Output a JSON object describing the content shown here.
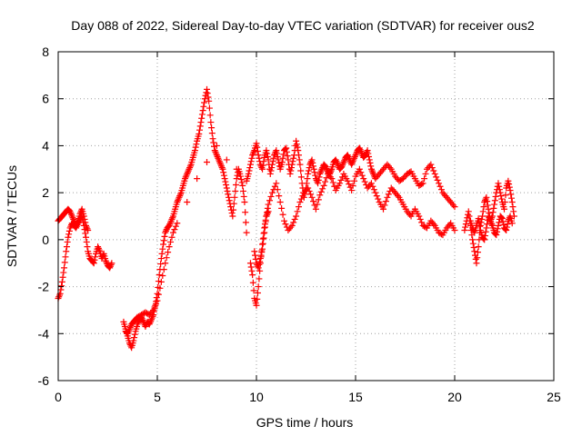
{
  "chart_data": {
    "type": "scatter",
    "title": "Day 088 of 2022, Sidereal Day-to-day VTEC variation (SDTVAR) for receiver ous2",
    "xlabel": "GPS time / hours",
    "ylabel": "SDTVAR / TECUs",
    "xlim": [
      0,
      25
    ],
    "ylim": [
      -6,
      8
    ],
    "xticks": [
      0,
      5,
      10,
      15,
      20,
      25
    ],
    "yticks": [
      -6,
      -4,
      -2,
      0,
      2,
      4,
      6,
      8
    ],
    "grid": true,
    "marker": "+",
    "color": "#ff0000",
    "series": [
      {
        "name": "SDTVAR",
        "x": [
          0.0,
          0.1,
          0.2,
          0.3,
          0.4,
          0.5,
          0.6,
          0.7,
          0.8,
          0.9,
          1.0,
          1.1,
          1.2,
          1.3,
          1.4,
          1.5,
          1.6,
          1.7,
          1.8,
          1.9,
          2.0,
          2.1,
          2.2,
          2.3,
          2.4,
          2.5,
          2.6,
          2.7,
          0.0,
          0.1,
          0.2,
          0.3,
          0.4,
          0.5,
          0.6,
          0.7,
          0.8,
          0.9,
          1.0,
          1.1,
          1.2,
          1.3,
          1.4,
          1.5,
          3.3,
          3.4,
          3.5,
          3.6,
          3.7,
          3.8,
          3.9,
          4.0,
          4.1,
          4.2,
          4.3,
          4.4,
          4.5,
          4.6,
          4.7,
          4.8,
          4.9,
          5.0,
          5.1,
          5.2,
          5.3,
          5.4,
          5.5,
          5.6,
          5.7,
          5.8,
          5.9,
          6.0,
          6.1,
          6.2,
          6.3,
          6.4,
          6.5,
          6.6,
          6.7,
          6.8,
          6.9,
          7.0,
          7.1,
          7.2,
          7.3,
          7.4,
          7.5,
          7.6,
          7.7,
          7.8,
          7.9,
          8.0,
          8.1,
          8.2,
          8.3,
          8.4,
          8.5,
          8.6,
          8.7,
          8.8,
          8.9,
          9.0,
          9.1,
          9.2,
          9.3,
          9.4,
          9.5,
          3.4,
          3.5,
          3.6,
          3.7,
          3.8,
          3.9,
          4.0,
          4.2,
          4.4,
          4.6,
          4.8,
          5.0,
          5.2,
          5.4,
          5.6,
          5.8,
          6.0,
          6.5,
          7.0,
          7.5,
          8.0,
          8.5,
          9.0,
          9.5,
          9.6,
          9.7,
          9.8,
          9.9,
          10.0,
          10.1,
          10.2,
          10.3,
          10.4,
          10.5,
          10.6,
          10.7,
          10.8,
          10.9,
          11.0,
          11.1,
          11.2,
          11.3,
          11.4,
          11.5,
          11.6,
          11.7,
          11.8,
          11.9,
          12.0,
          12.1,
          12.2,
          12.3,
          12.4,
          12.5,
          12.6,
          12.7,
          12.8,
          12.9,
          13.0,
          13.1,
          13.2,
          13.3,
          13.4,
          13.5,
          13.6,
          13.7,
          13.8,
          13.9,
          14.0,
          14.1,
          14.2,
          14.3,
          14.4,
          14.5,
          14.6,
          14.7,
          14.8,
          14.9,
          15.0,
          15.1,
          15.2,
          15.3,
          15.4,
          15.5,
          15.6,
          15.7,
          15.8,
          15.9,
          16.0,
          16.2,
          16.4,
          16.6,
          16.8,
          17.0,
          17.2,
          17.4,
          17.6,
          17.8,
          18.0,
          18.2,
          18.4,
          18.6,
          18.8,
          19.0,
          19.2,
          19.4,
          19.6,
          19.8,
          20.0,
          9.9,
          10.0,
          10.1,
          10.2,
          10.3,
          10.4,
          10.5,
          10.6,
          10.8,
          11.0,
          11.2,
          11.4,
          11.6,
          11.8,
          12.0,
          12.2,
          12.4,
          12.6,
          12.8,
          13.0,
          13.2,
          13.4,
          13.6,
          13.8,
          14.0,
          14.2,
          14.4,
          14.6,
          14.8,
          15.0,
          15.2,
          15.4,
          15.6,
          15.8,
          16.0,
          16.2,
          16.4,
          16.6,
          16.8,
          17.0,
          17.2,
          17.4,
          17.6,
          17.8,
          18.0,
          18.2,
          18.4,
          18.6,
          18.8,
          19.0,
          19.2,
          19.4,
          19.6,
          19.8,
          20.0,
          9.7,
          9.8,
          9.9,
          10.0,
          10.1,
          10.2,
          10.3,
          10.4,
          10.5,
          10.6,
          20.5,
          20.6,
          20.7,
          20.8,
          20.9,
          21.0,
          21.1,
          21.2,
          21.3,
          21.4,
          21.5,
          21.6,
          21.7,
          21.8,
          21.9,
          22.0,
          22.1,
          22.2,
          22.3,
          22.4,
          22.5,
          22.6,
          22.7,
          22.8,
          22.9,
          23.0,
          20.8,
          20.9,
          21.0,
          21.1,
          21.2,
          21.3,
          21.4,
          21.5,
          21.6,
          21.7,
          21.8,
          21.9,
          22.0,
          22.1,
          22.2,
          22.3,
          22.4,
          22.5,
          22.6,
          22.7,
          22.8,
          22.9
        ],
        "y": [
          -2.5,
          -2.3,
          -1.8,
          -1.2,
          -0.5,
          0.1,
          0.5,
          0.7,
          0.6,
          0.5,
          0.7,
          0.9,
          1.0,
          0.6,
          0.1,
          -0.5,
          -0.8,
          -0.9,
          -1.0,
          -0.6,
          -0.3,
          -0.5,
          -0.8,
          -0.6,
          -0.9,
          -1.1,
          -1.2,
          -1.0,
          0.8,
          0.9,
          1.0,
          1.1,
          1.2,
          1.3,
          1.2,
          1.0,
          0.8,
          0.6,
          0.8,
          1.1,
          1.3,
          1.0,
          0.6,
          0.4,
          -3.5,
          -3.8,
          -4.1,
          -4.4,
          -4.6,
          -4.3,
          -3.9,
          -3.6,
          -3.4,
          -3.3,
          -3.5,
          -3.7,
          -3.5,
          -3.6,
          -3.4,
          -3.2,
          -2.8,
          -2.3,
          -1.5,
          -0.8,
          -0.2,
          0.3,
          0.5,
          0.6,
          0.8,
          1.0,
          1.3,
          1.6,
          1.8,
          2.0,
          2.3,
          2.6,
          2.8,
          3.0,
          3.2,
          3.5,
          3.8,
          4.2,
          4.5,
          5.0,
          5.5,
          6.0,
          6.4,
          5.9,
          5.0,
          4.3,
          3.8,
          3.6,
          3.4,
          3.2,
          3.0,
          2.6,
          2.2,
          1.8,
          1.4,
          1.0,
          1.8,
          2.6,
          3.0,
          2.7,
          2.3,
          1.6,
          0.3,
          -3.9,
          -4.0,
          -3.8,
          -3.6,
          -3.5,
          -3.4,
          -3.3,
          -3.2,
          -3.1,
          -3.2,
          -3.0,
          -2.6,
          -1.8,
          -1.0,
          -0.3,
          0.3,
          0.7,
          1.6,
          2.6,
          3.3,
          4.0,
          3.4,
          3.0,
          2.5,
          2.8,
          3.2,
          3.6,
          3.8,
          4.1,
          3.6,
          3.2,
          3.0,
          3.5,
          3.8,
          3.4,
          2.8,
          3.2,
          3.6,
          3.8,
          3.4,
          3.0,
          3.3,
          3.8,
          3.9,
          3.4,
          2.8,
          3.2,
          3.6,
          4.2,
          3.8,
          3.2,
          2.4,
          1.8,
          2.2,
          2.8,
          3.2,
          3.4,
          3.0,
          2.6,
          2.4,
          2.8,
          3.0,
          3.2,
          3.1,
          2.9,
          2.8,
          3.0,
          3.3,
          3.4,
          3.2,
          3.0,
          3.1,
          3.3,
          3.5,
          3.6,
          3.4,
          3.2,
          3.4,
          3.6,
          3.8,
          3.9,
          3.7,
          3.5,
          3.6,
          3.8,
          3.4,
          3.0,
          2.8,
          2.6,
          2.8,
          3.0,
          3.2,
          3.0,
          2.7,
          2.5,
          2.6,
          2.8,
          2.9,
          2.6,
          2.3,
          2.4,
          3.0,
          3.2,
          2.8,
          2.4,
          2.0,
          1.8,
          1.6,
          1.4,
          -0.5,
          -1.0,
          -1.2,
          -0.8,
          -0.4,
          0.3,
          1.0,
          1.5,
          2.0,
          2.4,
          1.6,
          0.8,
          0.4,
          0.6,
          1.0,
          1.6,
          2.0,
          2.2,
          1.8,
          1.3,
          1.9,
          2.3,
          2.8,
          2.6,
          2.1,
          2.4,
          2.8,
          2.5,
          2.1,
          2.7,
          3.0,
          2.6,
          2.2,
          2.4,
          2.0,
          1.6,
          1.3,
          1.8,
          2.2,
          2.0,
          1.8,
          1.5,
          1.2,
          1.0,
          1.3,
          1.0,
          0.6,
          0.5,
          0.8,
          0.6,
          0.3,
          0.2,
          0.5,
          0.7,
          0.4,
          -1.0,
          -1.5,
          -2.5,
          -2.8,
          -2.0,
          -1.0,
          -0.2,
          0.5,
          1.0,
          1.2,
          0.4,
          0.8,
          1.2,
          0.6,
          0.0,
          -0.5,
          -1.0,
          -0.3,
          0.6,
          1.0,
          1.6,
          1.8,
          1.3,
          0.8,
          1.0,
          1.5,
          2.0,
          2.4,
          2.0,
          1.6,
          1.3,
          2.2,
          2.5,
          2.1,
          1.6,
          1.0,
          0.8,
          0.5,
          0.3,
          0.6,
          0.9,
          0.4,
          0.1,
          0.0,
          0.5,
          1.0,
          0.8,
          0.6,
          0.3,
          0.2,
          0.6,
          1.0,
          0.9,
          0.5,
          0.4,
          0.8,
          1.0,
          0.7
        ]
      }
    ]
  }
}
